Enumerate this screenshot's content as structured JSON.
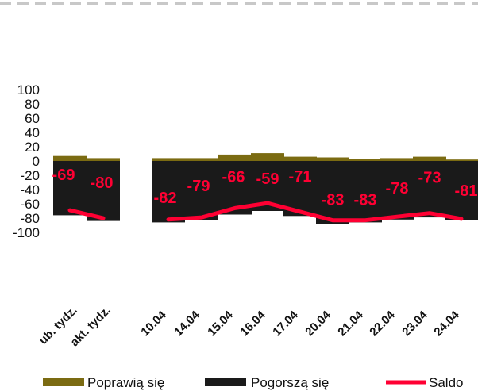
{
  "chart_data": {
    "type": "bar",
    "categories": [
      "ub. tydz.",
      "akt. tydz.",
      "",
      "10.04",
      "14.04",
      "15.04",
      "16.04",
      "17.04",
      "20.04",
      "21.04",
      "22.04",
      "23.04",
      "24.04"
    ],
    "series": [
      {
        "name": "Poprawią się",
        "kind": "bar",
        "values": [
          7,
          4,
          null,
          4,
          4,
          9,
          11,
          6,
          5,
          3,
          4,
          6,
          2
        ]
      },
      {
        "name": "Pogorszą się",
        "kind": "bar",
        "values": [
          -76,
          -84,
          null,
          -86,
          -83,
          -75,
          -70,
          -77,
          -88,
          -86,
          -82,
          -79,
          -83
        ]
      },
      {
        "name": "Saldo",
        "kind": "line",
        "values": [
          -69,
          -80,
          null,
          -82,
          -79,
          -66,
          -59,
          -71,
          -83,
          -83,
          -78,
          -73,
          -81
        ]
      }
    ],
    "data_labels": [
      "-69",
      "-80",
      "",
      "-82",
      "-79",
      "-66",
      "-59",
      "-71",
      "-83",
      "-83",
      "-78",
      "-73",
      "-81"
    ],
    "yticks": [
      "100",
      "80",
      "60",
      "40",
      "20",
      "0",
      "-20",
      "-40",
      "-60",
      "-80",
      "-100"
    ],
    "ylim": [
      -100,
      100
    ],
    "grid": false,
    "legend_position": "bottom",
    "colors": {
      "up": "#7b6b12",
      "down": "#1a1a1a",
      "line": "#ff0033",
      "dash": "#c8c8c8"
    }
  }
}
